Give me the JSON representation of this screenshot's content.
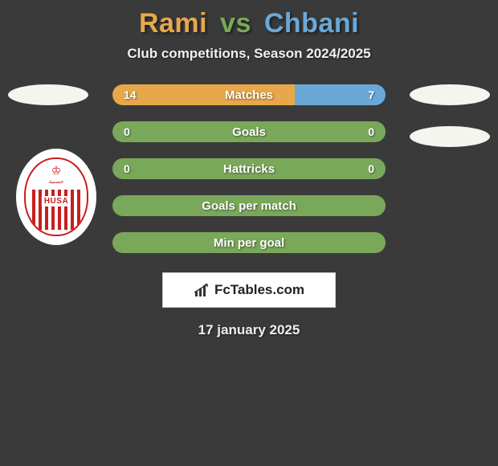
{
  "background_color": "#3a3a3a",
  "title": {
    "player1": "Rami",
    "vs": "vs",
    "player2": "Chbani",
    "player1_color": "#e6a84a",
    "vs_color": "#7aa85a",
    "player2_color": "#6aa8d8"
  },
  "subtitle": "Club competitions, Season 2024/2025",
  "club_logo": {
    "text": "HUSA",
    "accent": "#c81e1e"
  },
  "stats": {
    "left_color": "#e6a84a",
    "right_color": "#6aa8d8",
    "neutral_color": "#7aa85a",
    "rows": [
      {
        "label": "Matches",
        "left": "14",
        "right": "7",
        "left_pct": 66.7,
        "right_pct": 33.3,
        "mode": "split"
      },
      {
        "label": "Goals",
        "left": "0",
        "right": "0",
        "mode": "neutral"
      },
      {
        "label": "Hattricks",
        "left": "0",
        "right": "0",
        "mode": "neutral"
      },
      {
        "label": "Goals per match",
        "left": "",
        "right": "",
        "mode": "neutral"
      },
      {
        "label": "Min per goal",
        "left": "",
        "right": "",
        "mode": "neutral"
      }
    ]
  },
  "brand": {
    "text": "FcTables.com",
    "icon_color": "#333333"
  },
  "date": "17 january 2025"
}
